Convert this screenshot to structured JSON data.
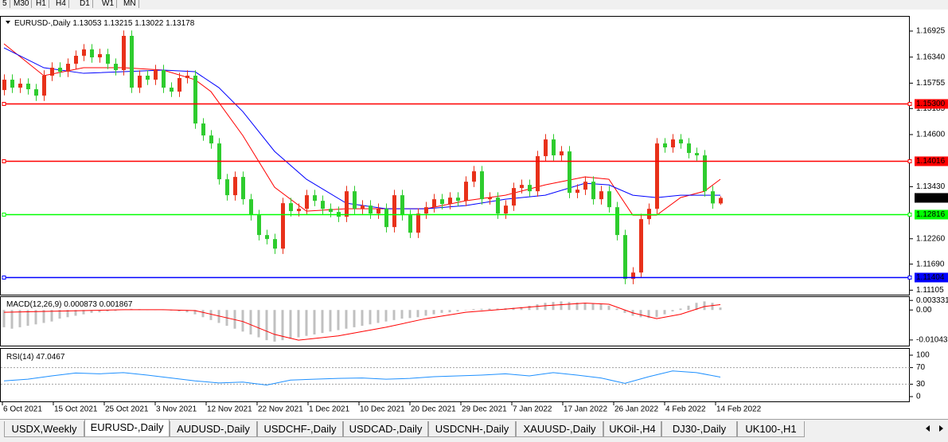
{
  "toolbar": [
    "5",
    "M30",
    "H1",
    "H4",
    "D1",
    "W1",
    "MN"
  ],
  "chart_data": [
    {
      "type": "candlestick",
      "title": "EURUSD-,Daily",
      "up_color": "#e8311a",
      "down_color": "#2ecc2e",
      "ylim": [
        1.11004,
        1.17265
      ],
      "yticks": [
        1.16925,
        {
          "value": 1.1634,
          "label": "1.16340"
        },
        1.15755,
        1.15185,
        {
          "value": 1.146,
          "label": "1.14600"
        },
        {
          "value": 1.1343,
          "label": "1.13430"
        },
        {
          "value": 1.1226,
          "label": "1.12260"
        },
        {
          "value": 1.1169,
          "label": "1.11690"
        },
        1.11105
      ],
      "levels": [
        {
          "value": 1.153,
          "label": "1.15300",
          "color": "#ff0000"
        },
        {
          "value": 1.14016,
          "color": "#ff0000"
        },
        {
          "value": 1.12816,
          "color": "#00ff00"
        },
        {
          "value": 1.11404,
          "color": "#0000ff"
        }
      ],
      "x_labels": [
        "6 Oct 2021",
        "15 Oct 2021",
        "25 Oct 2021",
        "3 Nov 2021",
        "12 Nov 2021",
        "22 Nov 2021",
        "1 Dec 2021",
        "10 Dec 2021",
        "20 Dec 2021",
        "29 Dec 2021",
        "7 Jan 2022",
        "17 Jan 2022",
        "26 Jan 2022",
        "4 Feb 2022",
        "14 Feb 2022"
      ],
      "ohlc": [
        [
          1.156,
          1.15953,
          1.1548,
          1.15833
        ],
        [
          1.15833,
          1.15953,
          1.15534,
          1.15654
        ],
        [
          1.15654,
          1.15864,
          1.15534,
          1.15744
        ],
        [
          1.15744,
          1.15864,
          1.15498,
          1.15618
        ],
        [
          1.15618,
          1.15738,
          1.15355,
          1.15475
        ],
        [
          1.15475,
          1.16043,
          1.15355,
          1.15923
        ],
        [
          1.15923,
          1.16222,
          1.15803,
          1.16102
        ],
        [
          1.16102,
          1.16222,
          1.15892,
          1.16012
        ],
        [
          1.16012,
          1.16311,
          1.15892,
          1.16191
        ],
        [
          1.16191,
          1.1649,
          1.16071,
          1.1637
        ],
        [
          1.1637,
          1.16633,
          1.1625,
          1.16513
        ],
        [
          1.16513,
          1.16633,
          1.16214,
          1.16334
        ],
        [
          1.16334,
          1.16526,
          1.16214,
          1.16406
        ],
        [
          1.16406,
          1.16526,
          1.16071,
          1.16191
        ],
        [
          1.16191,
          1.16311,
          1.15928,
          1.16048
        ],
        [
          1.16048,
          1.16938,
          1.15928,
          1.16818
        ],
        [
          1.16818,
          1.16938,
          1.15534,
          1.15654
        ],
        [
          1.15654,
          1.16043,
          1.15534,
          1.15923
        ],
        [
          1.15923,
          1.16043,
          1.15713,
          1.15833
        ],
        [
          1.15833,
          1.16168,
          1.15713,
          1.16048
        ],
        [
          1.16048,
          1.16168,
          1.15534,
          1.15654
        ],
        [
          1.15654,
          1.15774,
          1.15445,
          1.15565
        ],
        [
          1.15565,
          1.15989,
          1.15445,
          1.15869
        ],
        [
          1.15869,
          1.16043,
          1.15749,
          1.15923
        ],
        [
          1.15923,
          1.16043,
          1.14729,
          1.14849
        ],
        [
          1.14849,
          1.14969,
          1.1446,
          1.1458
        ],
        [
          1.1458,
          1.147,
          1.14281,
          1.14401
        ],
        [
          1.14401,
          1.14521,
          1.13476,
          1.13596
        ],
        [
          1.13596,
          1.13716,
          1.13118,
          1.13238
        ],
        [
          1.13238,
          1.13769,
          1.13118,
          1.13649
        ],
        [
          1.13649,
          1.13769,
          1.13028,
          1.13148
        ],
        [
          1.13148,
          1.13268,
          1.1267,
          1.1279
        ],
        [
          1.1279,
          1.1291,
          1.12223,
          1.12343
        ],
        [
          1.12343,
          1.12463,
          1.12133,
          1.12253
        ],
        [
          1.12253,
          1.12373,
          1.11918,
          1.12038
        ],
        [
          1.12038,
          1.13179,
          1.11918,
          1.13059
        ],
        [
          1.13059,
          1.13179,
          1.1276,
          1.1288
        ],
        [
          1.1288,
          1.13053,
          1.1276,
          1.12933
        ],
        [
          1.12933,
          1.13358,
          1.12813,
          1.13238
        ],
        [
          1.13238,
          1.13358,
          1.12992,
          1.13112
        ],
        [
          1.13112,
          1.13232,
          1.12813,
          1.12933
        ],
        [
          1.12933,
          1.13053,
          1.12742,
          1.12862
        ],
        [
          1.12862,
          1.12982,
          1.12634,
          1.12754
        ],
        [
          1.12754,
          1.13447,
          1.12634,
          1.13327
        ],
        [
          1.13327,
          1.13447,
          1.12813,
          1.12933
        ],
        [
          1.12933,
          1.13125,
          1.12813,
          1.13005
        ],
        [
          1.13005,
          1.13125,
          1.12706,
          1.12826
        ],
        [
          1.12826,
          1.13053,
          1.12706,
          1.12933
        ],
        [
          1.12933,
          1.13053,
          1.12402,
          1.12522
        ],
        [
          1.12522,
          1.13358,
          1.12402,
          1.13238
        ],
        [
          1.13238,
          1.13358,
          1.1267,
          1.1279
        ],
        [
          1.1279,
          1.1291,
          1.12276,
          1.12396
        ],
        [
          1.12396,
          1.12946,
          1.12276,
          1.12826
        ],
        [
          1.12826,
          1.13089,
          1.12706,
          1.12969
        ],
        [
          1.12969,
          1.13268,
          1.12849,
          1.13148
        ],
        [
          1.13148,
          1.13268,
          1.12921,
          1.13041
        ],
        [
          1.13041,
          1.13304,
          1.12921,
          1.13184
        ],
        [
          1.13184,
          1.13304,
          1.12992,
          1.13112
        ],
        [
          1.13112,
          1.13662,
          1.12992,
          1.13542
        ],
        [
          1.13542,
          1.13895,
          1.13422,
          1.13775
        ],
        [
          1.13775,
          1.13895,
          1.13028,
          1.13148
        ],
        [
          1.13148,
          1.13304,
          1.13028,
          1.13184
        ],
        [
          1.13184,
          1.13304,
          1.12706,
          1.12826
        ],
        [
          1.12826,
          1.13125,
          1.12706,
          1.13005
        ],
        [
          1.13005,
          1.13519,
          1.12885,
          1.13399
        ],
        [
          1.13399,
          1.1359,
          1.13279,
          1.1347
        ],
        [
          1.1347,
          1.1359,
          1.13207,
          1.13327
        ],
        [
          1.13327,
          1.14235,
          1.13207,
          1.14115
        ],
        [
          1.14115,
          1.14611,
          1.13995,
          1.14491
        ],
        [
          1.14491,
          1.14611,
          1.14013,
          1.14133
        ],
        [
          1.14133,
          1.14342,
          1.14013,
          1.14222
        ],
        [
          1.14222,
          1.14342,
          1.13171,
          1.13291
        ],
        [
          1.13291,
          1.13483,
          1.13171,
          1.13363
        ],
        [
          1.13363,
          1.13662,
          1.13243,
          1.13542
        ],
        [
          1.13542,
          1.13662,
          1.13028,
          1.13148
        ],
        [
          1.13148,
          1.13447,
          1.13028,
          1.13327
        ],
        [
          1.13327,
          1.13447,
          1.12849,
          1.12969
        ],
        [
          1.12969,
          1.13089,
          1.12223,
          1.12343
        ],
        [
          1.12343,
          1.12463,
          1.11238,
          1.11358
        ],
        [
          1.11358,
          1.11621,
          1.11238,
          1.11501
        ],
        [
          1.11501,
          1.12821,
          1.11381,
          1.12701
        ],
        [
          1.12701,
          1.13053,
          1.12581,
          1.12933
        ],
        [
          1.12933,
          1.14521,
          1.12813,
          1.14401
        ],
        [
          1.14401,
          1.14521,
          1.14192,
          1.14312
        ],
        [
          1.14312,
          1.14611,
          1.14192,
          1.14491
        ],
        [
          1.14491,
          1.14611,
          1.14281,
          1.14401
        ],
        [
          1.14401,
          1.14521,
          1.14066,
          1.14186
        ],
        [
          1.14186,
          1.14306,
          1.14013,
          1.14133
        ],
        [
          1.14133,
          1.14253,
          1.13207,
          1.13327
        ],
        [
          1.13327,
          1.13447,
          1.12933,
          1.13053
        ],
        [
          1.13053,
          1.13215,
          1.13022,
          1.13178
        ]
      ],
      "moving_averages": [
        {
          "color": "#ff0000",
          "x": [
            0,
            5,
            10,
            15,
            20,
            24,
            26,
            30,
            34,
            38,
            43,
            48,
            53,
            58,
            63,
            68,
            73,
            76,
            79,
            82,
            85,
            88,
            90
          ],
          "values": [
            1.16639,
            1.15923,
            1.16102,
            1.16102,
            1.16048,
            1.15833,
            1.15565,
            1.1458,
            1.13417,
            1.1288,
            1.12933,
            1.12933,
            1.12933,
            1.13112,
            1.13238,
            1.1347,
            1.13649,
            1.13596,
            1.1279,
            1.1279,
            1.13184,
            1.13327,
            1.13596
          ]
        },
        {
          "color": "#0000ff",
          "x": [
            0,
            5,
            10,
            15,
            20,
            24,
            27,
            30,
            34,
            38,
            43,
            48,
            53,
            58,
            63,
            68,
            73,
            76,
            79,
            82,
            85,
            88,
            90
          ],
          "values": [
            1.16549,
            1.16102,
            1.15976,
            1.16012,
            1.16048,
            1.16012,
            1.15654,
            1.15117,
            1.14222,
            1.13596,
            1.13059,
            1.12933,
            1.12933,
            1.13005,
            1.13148,
            1.13238,
            1.13506,
            1.1347,
            1.13238,
            1.13184,
            1.13238,
            1.13238,
            1.13238
          ]
        }
      ]
    },
    {
      "type": "macd",
      "title": "MACD(12,26,9)",
      "color": "#c0c0c0",
      "ylim": [
        -0.0124,
        0.0045
      ],
      "yticks": [
        0.003331,
        {
          "value": 0,
          "label": "0.00"
        },
        -0.01043
      ],
      "histogram": [
        -0.006,
        -0.0065,
        -0.006,
        -0.0055,
        -0.005,
        -0.0045,
        -0.004,
        -0.003,
        -0.0025,
        -0.002,
        -0.0015,
        -0.001,
        -0.0008,
        -0.0005,
        -0.0003,
        0.0002,
        0.0004,
        0.0003,
        0.0002,
        0.0002,
        0.0001,
        -0.0002,
        -0.0005,
        -0.0008,
        -0.0015,
        -0.0025,
        -0.0035,
        -0.0045,
        -0.0055,
        -0.0065,
        -0.0075,
        -0.0085,
        -0.0095,
        -0.0105,
        -0.011,
        -0.0105,
        -0.01,
        -0.0095,
        -0.009,
        -0.0085,
        -0.008,
        -0.0075,
        -0.007,
        -0.0065,
        -0.006,
        -0.0055,
        -0.005,
        -0.0045,
        -0.004,
        -0.0035,
        -0.003,
        -0.0028,
        -0.0025,
        -0.002,
        -0.0015,
        -0.001,
        -0.0008,
        -0.0005,
        0,
        0.0003,
        0.0004,
        0.0005,
        0.0005,
        0.0006,
        0.0008,
        0.001,
        0.0015,
        0.002,
        0.0025,
        0.0028,
        0.003,
        0.0028,
        0.0026,
        0.0024,
        0.0022,
        0.002,
        0.0015,
        0.0005,
        -0.001,
        -0.002,
        -0.0025,
        -0.0028,
        -0.0025,
        -0.0015,
        -0.0005,
        0.0005,
        0.0015,
        0.0025,
        0.003,
        0.0025,
        0.000873
      ],
      "signal": {
        "color": "#ff0000",
        "x": [
          0,
          10,
          15,
          20,
          24,
          30,
          34,
          37,
          42,
          48,
          53,
          58,
          63,
          68,
          73,
          76,
          79,
          82,
          85,
          88,
          90
        ],
        "values": [
          -0.0008,
          -0.0002,
          0.0001,
          0.0001,
          -0.0002,
          -0.004,
          -0.0085,
          -0.0105,
          -0.009,
          -0.006,
          -0.003,
          -0.0008,
          0.0003,
          0.0015,
          0.0024,
          0.002,
          -0.001,
          -0.003,
          -0.0015,
          0.0012,
          0.001867
        ]
      }
    },
    {
      "type": "line",
      "title": "RSI(14)",
      "color": "#1e90ff",
      "ylim": [
        0,
        100
      ],
      "yticks": [
        100,
        70,
        30,
        0
      ],
      "levels": [
        70,
        30
      ],
      "x": [
        0,
        3,
        6,
        9,
        12,
        15,
        18,
        21,
        24,
        27,
        30,
        33,
        36,
        39,
        42,
        45,
        48,
        51,
        54,
        57,
        60,
        63,
        66,
        69,
        72,
        75,
        78,
        81,
        84,
        87,
        90
      ],
      "values": [
        38,
        42,
        50,
        57,
        55,
        58,
        52,
        45,
        38,
        33,
        35,
        28,
        40,
        42,
        44,
        45,
        42,
        44,
        48,
        50,
        52,
        55,
        50,
        58,
        52,
        45,
        32,
        48,
        62,
        58,
        47.0467
      ]
    }
  ],
  "tabs": [
    "USDX,Weekly",
    "EURUSD-,Daily",
    "AUDUSD-,Daily",
    "USDCHF-,Daily",
    "USDCAD-,Daily",
    "USDCNH-,Daily",
    "XAUUSD-,Daily",
    "UKOil-,H4",
    "DJ30-,Daily",
    "UK100-,H1"
  ],
  "active_tab": 1
}
